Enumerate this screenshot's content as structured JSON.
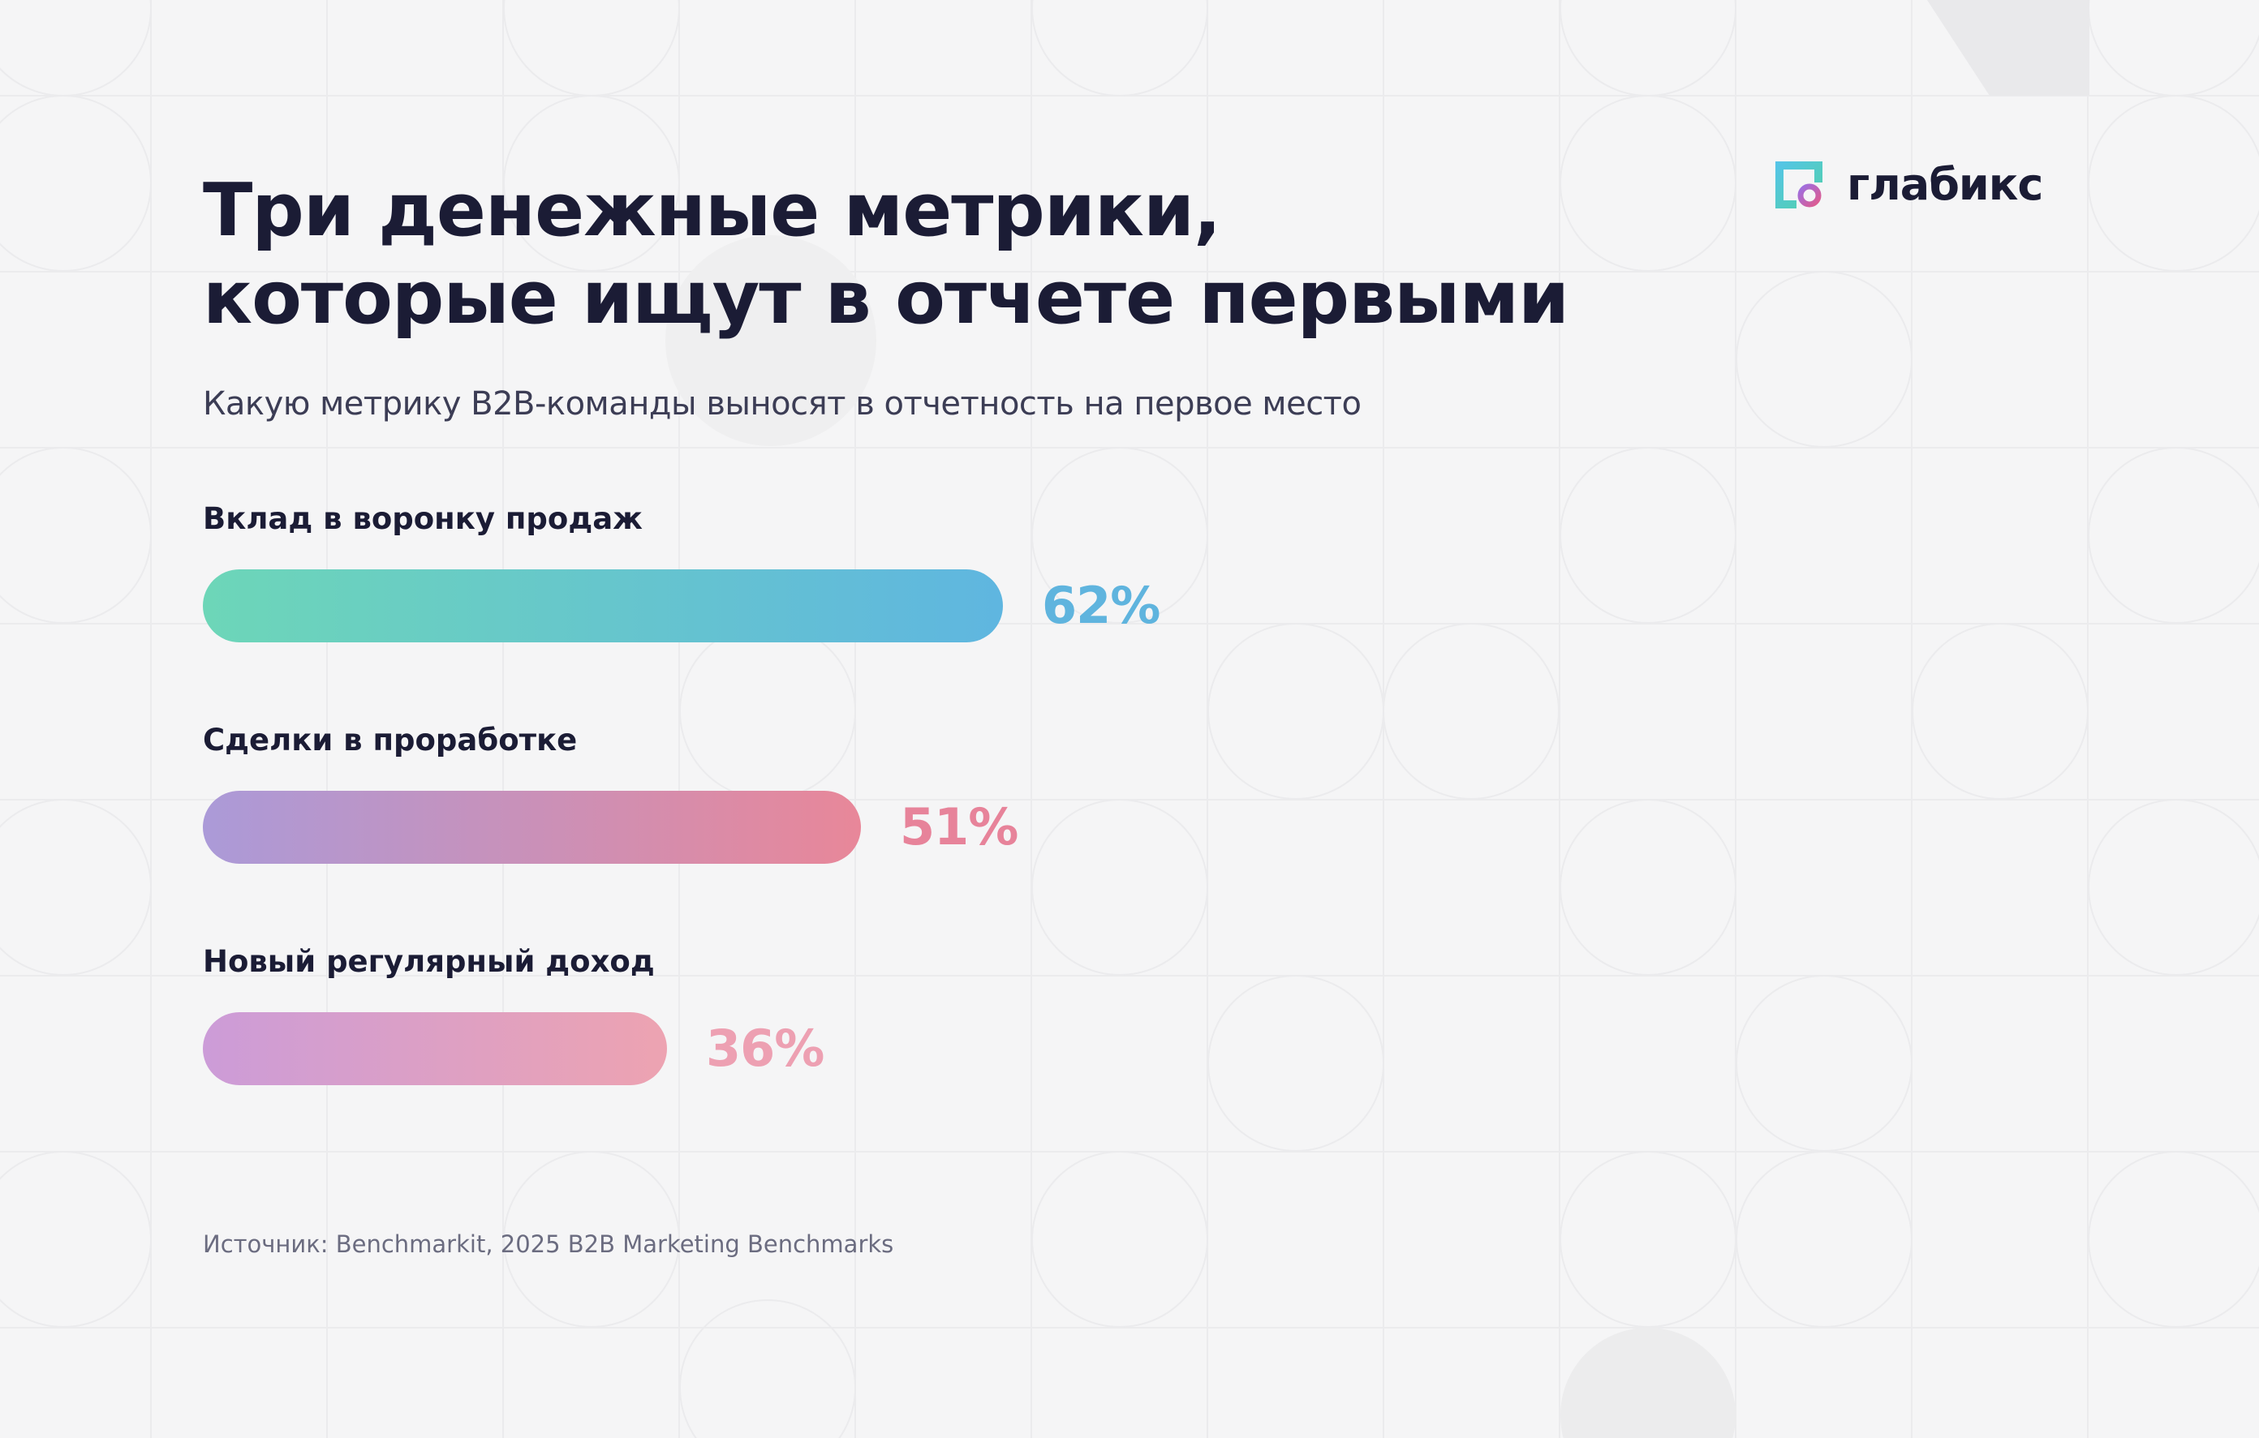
{
  "brand": {
    "name": "глабикс",
    "logo_colors": [
      "#55c4ea",
      "#52d1a7",
      "#9b6fe3",
      "#e05b8d"
    ]
  },
  "header": {
    "title_line1": "Три денежные метрики,",
    "title_line2": "которые ищут в отчете первыми",
    "subtitle": "Какую метрику B2B-команды выносят в отчетность на первое место"
  },
  "footer": {
    "source": "Источник: Benchmarkit, 2025 B2B Marketing Benchmarks"
  },
  "chart_data": {
    "type": "bar",
    "orientation": "horizontal",
    "categories": [
      "Вклад в воронку продаж",
      "Сделки в проработке",
      "Новый регулярный доход"
    ],
    "values": [
      62,
      51,
      36
    ],
    "value_labels": [
      "62%",
      "51%",
      "36%"
    ],
    "unit": "%",
    "xlim": [
      0,
      100
    ],
    "grid": false,
    "legend": "none",
    "colors": [
      {
        "from": "#6dd6b8",
        "to": "#5fb6e0",
        "label": "#5fb4de"
      },
      {
        "from": "#ab9ad8",
        "to": "#e88799",
        "label": "#e7839a"
      },
      {
        "from": "#cc9cd8",
        "to": "#eda3b1",
        "label": "#eda0b2"
      }
    ]
  }
}
